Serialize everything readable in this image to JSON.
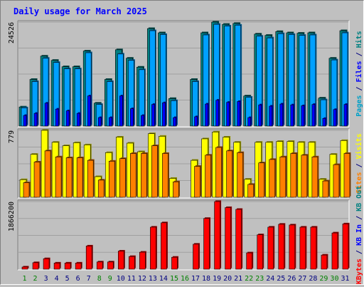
{
  "chart_data": {
    "type": "bar",
    "title": "Daily usage for March 2025",
    "categories": [
      "1",
      "2",
      "3",
      "4",
      "5",
      "6",
      "7",
      "8",
      "9",
      "10",
      "11",
      "12",
      "13",
      "14",
      "15",
      "16",
      "17",
      "18",
      "19",
      "20",
      "21",
      "22",
      "23",
      "24",
      "25",
      "26",
      "27",
      "28",
      "29",
      "30",
      "31"
    ],
    "weekend_days": [
      "1",
      "2",
      "8",
      "9",
      "15",
      "16",
      "22",
      "23",
      "29",
      "30"
    ],
    "panels": [
      {
        "id": "hits-files-pages",
        "ymax_label": "24526",
        "ymax": 24526,
        "ylabel_parts": [
          {
            "text": "Pages",
            "color": "#00a0c8"
          },
          {
            "text": " / ",
            "color": "#000080"
          },
          {
            "text": "Files",
            "color": "#0000ff"
          },
          {
            "text": " / ",
            "color": "#000080"
          },
          {
            "text": "Hits",
            "color": "#008080"
          }
        ],
        "series": [
          {
            "name": "Hits",
            "color": "#008080",
            "values": [
              4500,
              11000,
              16500,
              15500,
              14000,
              14000,
              17700,
              5400,
              11000,
              18000,
              16000,
              13900,
              23000,
              22000,
              6500,
              0,
              11000,
              22000,
              24526,
              24000,
              24200,
              7100,
              21700,
              21400,
              22300,
              22000,
              21900,
              22000,
              6600,
              16000,
              22500
            ]
          },
          {
            "name": "Files",
            "color": "#00a0ff",
            "values": [
              4300,
              10500,
              16000,
              15000,
              13500,
              13500,
              17300,
              5100,
              10500,
              17000,
              15500,
              13300,
              22500,
              21600,
              6000,
              0,
              10500,
              21500,
              24000,
              23600,
              23800,
              6800,
              21200,
              20800,
              21800,
              21600,
              21400,
              21500,
              6200,
              15600,
              22000
            ]
          },
          {
            "name": "Pages",
            "color": "#0000ff",
            "values": [
              2500,
              3000,
              5400,
              4000,
              3600,
              3000,
              7100,
              2000,
              2000,
              7100,
              4100,
              2500,
              5100,
              5500,
              2000,
              0,
              2200,
              5200,
              6100,
              5600,
              5800,
              2000,
              5000,
              4700,
              5200,
              5000,
              4800,
              5100,
              1800,
              3900,
              5100
            ]
          }
        ]
      },
      {
        "id": "visits-sites",
        "ymax_label": "779",
        "ymax": 779,
        "ylabel_parts": [
          {
            "text": "Sites",
            "color": "#ff8000"
          },
          {
            "text": " / ",
            "color": "#000080"
          },
          {
            "text": "Visits",
            "color": "#ffff00"
          }
        ],
        "series": [
          {
            "name": "Visits",
            "color": "#ffff00",
            "values": [
              205,
              500,
              779,
              640,
              600,
              635,
              610,
              240,
              520,
              700,
              630,
              530,
              740,
              710,
              220,
              0,
              430,
              680,
              760,
              700,
              640,
              210,
              640,
              640,
              650,
              650,
              640,
              640,
              210,
              500,
              660
            ]
          },
          {
            "name": "Sites",
            "color": "#ff8000",
            "values": [
              170,
              410,
              540,
              470,
              460,
              460,
              430,
              200,
              420,
              450,
              510,
              510,
              600,
              510,
              180,
              0,
              360,
              490,
              580,
              540,
              520,
              150,
              400,
              440,
              470,
              510,
              490,
              470,
              190,
              380,
              510
            ]
          }
        ]
      },
      {
        "id": "kbytes",
        "ymax_label": "1866200",
        "ymax": 1866200,
        "ylabel_parts": [
          {
            "text": "KBytes",
            "color": "#ff0000"
          },
          {
            "text": " / ",
            "color": "#000080"
          },
          {
            "text": "KB In",
            "color": "#0000ff"
          },
          {
            "text": " / ",
            "color": "#000080"
          },
          {
            "text": "KB Out",
            "color": "#008080"
          }
        ],
        "series": [
          {
            "name": "KBytes",
            "color": "#ff0000",
            "values": [
              60000,
              180000,
              290000,
              170000,
              170000,
              170000,
              640000,
              200000,
              200000,
              500000,
              350000,
              470000,
              1160000,
              1280000,
              330000,
              0,
              690000,
              1400000,
              1866200,
              1700000,
              1650000,
              450000,
              950000,
              1160000,
              1240000,
              1220000,
              1160000,
              1160000,
              390000,
              1000000,
              1250000
            ]
          }
        ]
      }
    ]
  }
}
